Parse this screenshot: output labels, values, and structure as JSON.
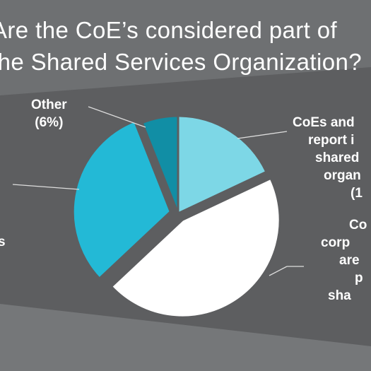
{
  "title": {
    "line1": "Are the CoE’s considered part of",
    "line2": "the Shared Services Organization?"
  },
  "colors": {
    "background": "#5d5e60",
    "band_light": "#727476",
    "slice_report": "#7dd7e6",
    "slice_corporate": "#ffffff",
    "slice_separate": "#23b9d6",
    "slice_other": "#118ea5",
    "leader": "#dddddd"
  },
  "chart_data": {
    "type": "pie",
    "title": "Are the CoE’s considered part of the Shared Services Organization?",
    "start_angle_deg": 0,
    "clockwise": true,
    "slices": [
      {
        "key": "report",
        "label": "CoEs and ... report i... shared... organ... (1...",
        "value": 18,
        "color": "#7dd7e6",
        "exploded": false
      },
      {
        "key": "corporate",
        "label": "Co... corp... are... p... sha...",
        "value": 45,
        "color": "#ffffff",
        "exploded": true
      },
      {
        "key": "separate",
        "label": "...s",
        "value": 31,
        "color": "#23b9d6",
        "exploded": true
      },
      {
        "key": "other",
        "label": "Other (6%)",
        "value": 6,
        "color": "#118ea5",
        "exploded": false
      }
    ]
  },
  "labels": {
    "other": {
      "name": "Other",
      "pct": "(6%)"
    },
    "report": [
      "CoEs and",
      "report i",
      "shared",
      "organ",
      "(1"
    ],
    "corporate": [
      "Co",
      "corp",
      "are",
      "p",
      "sha"
    ],
    "separate_fragment": "s"
  }
}
